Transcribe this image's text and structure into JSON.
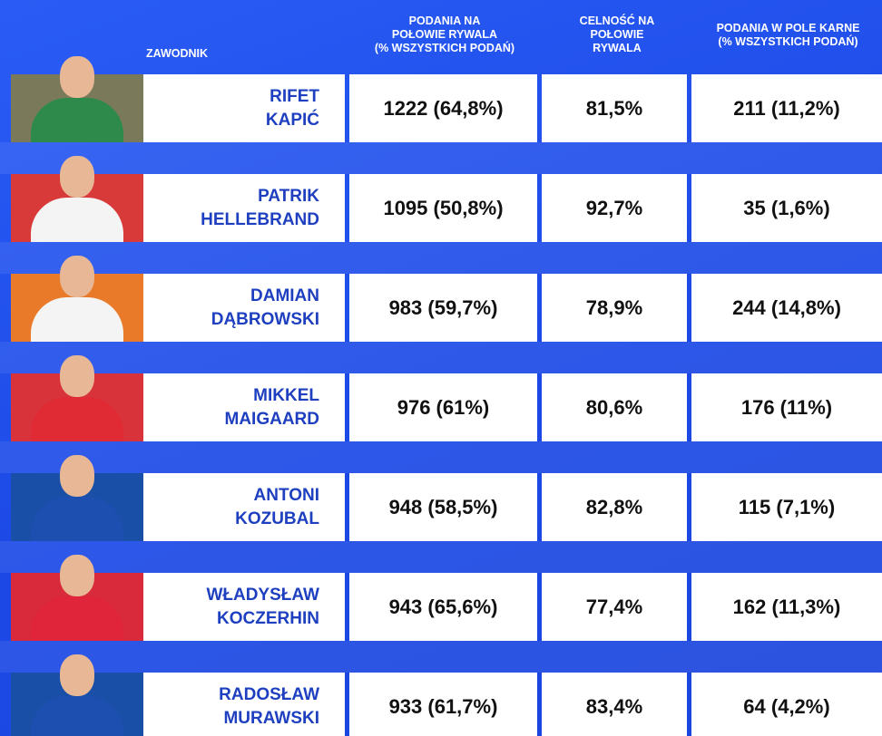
{
  "header": {
    "player": "ZAWODNIK",
    "col1": [
      "PODANIA NA",
      "POŁOWIE RYWALA",
      "(% WSZYSTKICH PODAŃ)"
    ],
    "col2": [
      "CELNOŚĆ NA",
      "POŁOWIE",
      "RYWALA"
    ],
    "col3": [
      "PODANIA W POLE KARNE",
      "(% WSZYSTKICH PODAŃ)"
    ]
  },
  "rows": [
    {
      "name": [
        "RIFET",
        "KAPIĆ"
      ],
      "passes": "1222 (64,8%)",
      "accuracy": "81,5%",
      "box": "211 (11,2%)"
    },
    {
      "name": [
        "PATRIK",
        "HELLEBRAND"
      ],
      "passes": "1095 (50,8%)",
      "accuracy": "92,7%",
      "box": "35 (1,6%)"
    },
    {
      "name": [
        "DAMIAN",
        "DĄBROWSKI"
      ],
      "passes": "983 (59,7%)",
      "accuracy": "78,9%",
      "box": "244 (14,8%)"
    },
    {
      "name": [
        "MIKKEL",
        "MAIGAARD"
      ],
      "passes": "976 (61%)",
      "accuracy": "80,6%",
      "box": "176 (11%)"
    },
    {
      "name": [
        "ANTONI",
        "KOZUBAL"
      ],
      "passes": "948 (58,5%)",
      "accuracy": "82,8%",
      "box": "115 (7,1%)"
    },
    {
      "name": [
        "WŁADYSŁAW",
        "KOCZERHIN"
      ],
      "passes": "943 (65,6%)",
      "accuracy": "77,4%",
      "box": "162 (11,3%)"
    },
    {
      "name": [
        "RADOSŁAW",
        "MURAWSKI"
      ],
      "passes": "933 (61,7%)",
      "accuracy": "83,4%",
      "box": "64 (4,2%)"
    }
  ]
}
